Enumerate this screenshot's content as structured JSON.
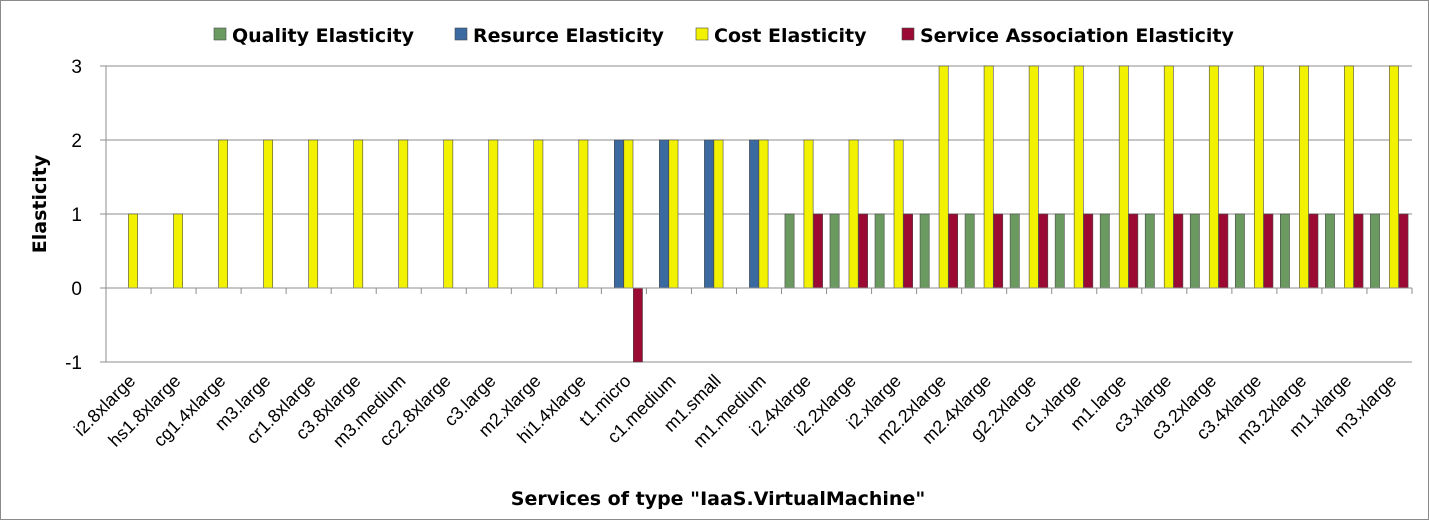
{
  "chart_data": {
    "type": "bar",
    "xlabel": "Services of type \"IaaS.VirtualMachine\"",
    "ylabel": "Elasticity",
    "ylim": [
      -1,
      3
    ],
    "yticks": [
      3,
      2,
      1,
      0,
      -1
    ],
    "grid": true,
    "legend_position": "top",
    "categories": [
      "i2.8xlarge",
      "hs1.8xlarge",
      "cg1.4xlarge",
      "m3.large",
      "cr1.8xlarge",
      "c3.8xlarge",
      "m3.medium",
      "cc2.8xlarge",
      "c3.large",
      "m2.xlarge",
      "hi1.4xlarge",
      "t1.micro",
      "c1.medium",
      "m1.small",
      "m1.medium",
      "i2.4xlarge",
      "i2.2xlarge",
      "i2.xlarge",
      "m2.2xlarge",
      "m2.4xlarge",
      "g2.2xlarge",
      "c1.xlarge",
      "m1.large",
      "c3.xlarge",
      "c3.2xlarge",
      "c3.4xlarge",
      "m3.2xlarge",
      "m1.xlarge",
      "m3.xlarge"
    ],
    "series": [
      {
        "name": "Quality Elasticity",
        "color": "#6a9a60",
        "values": [
          0,
          0,
          0,
          0,
          0,
          0,
          0,
          0,
          0,
          0,
          0,
          0,
          0,
          0,
          0,
          1,
          1,
          1,
          1,
          1,
          1,
          1,
          1,
          1,
          1,
          1,
          1,
          1,
          1
        ]
      },
      {
        "name": "Resurce Elasticity",
        "color": "#3a6aa0",
        "values": [
          0,
          0,
          0,
          0,
          0,
          0,
          0,
          0,
          0,
          0,
          0,
          2,
          2,
          2,
          2,
          0,
          0,
          0,
          0,
          0,
          0,
          0,
          0,
          0,
          0,
          0,
          0,
          0,
          0
        ]
      },
      {
        "name": "Cost Elasticity",
        "color": "#f2f200",
        "values": [
          1,
          1,
          2,
          2,
          2,
          2,
          2,
          2,
          2,
          2,
          2,
          2,
          2,
          2,
          2,
          2,
          2,
          2,
          3,
          3,
          3,
          3,
          3,
          3,
          3,
          3,
          3,
          3,
          3
        ]
      },
      {
        "name": "Service Association  Elasticity",
        "color": "#9a0a32",
        "values": [
          0,
          0,
          0,
          0,
          0,
          0,
          0,
          0,
          0,
          0,
          0,
          -1,
          0,
          0,
          0,
          1,
          1,
          1,
          1,
          1,
          1,
          1,
          1,
          1,
          1,
          1,
          1,
          1,
          1
        ]
      }
    ]
  }
}
